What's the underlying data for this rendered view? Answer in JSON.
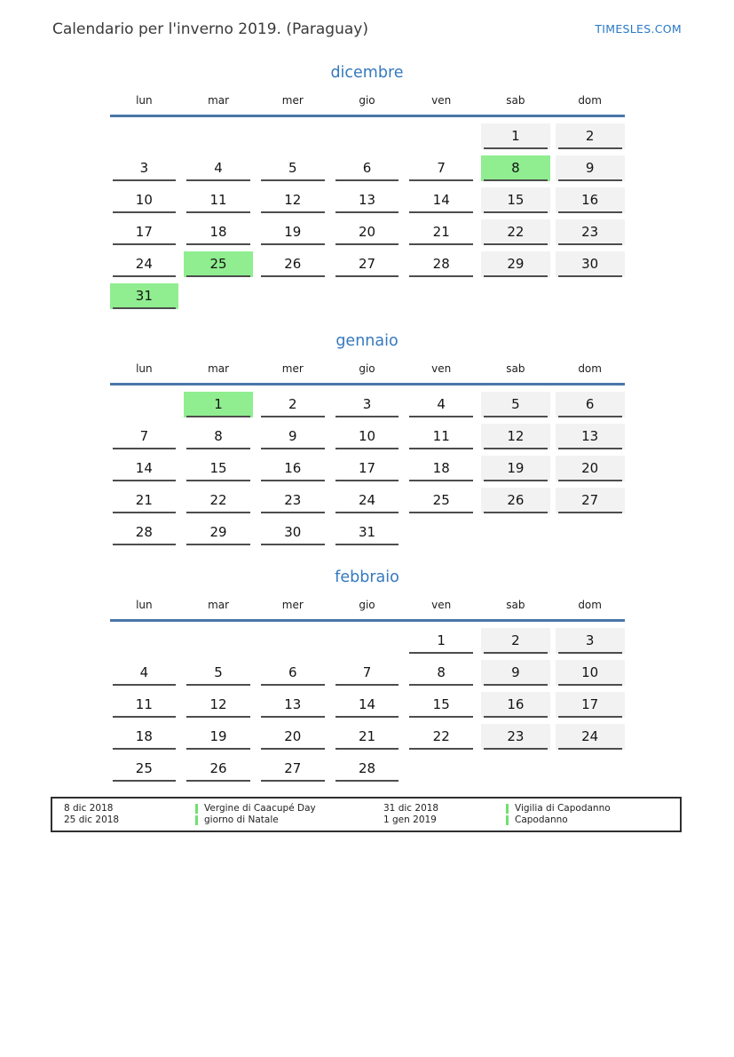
{
  "page": {
    "title": "Calendario per l'inverno 2019. (Paraguay)",
    "site": "TIMESLES.COM"
  },
  "colors": {
    "accent_blue": "#3579be",
    "header_line_blue": "#4a76a8",
    "holiday_green": "#90ee90",
    "weekend_gray": "#f2f2f2",
    "cell_border_gray": "#4d4d4d",
    "legend_marker_green": "#70e070"
  },
  "weekdays": [
    "lun",
    "mar",
    "mer",
    "gio",
    "ven",
    "sab",
    "dom"
  ],
  "months": [
    {
      "name": "dicembre",
      "weeks": [
        [
          {
            "d": ""
          },
          {
            "d": ""
          },
          {
            "d": ""
          },
          {
            "d": ""
          },
          {
            "d": ""
          },
          {
            "d": "1",
            "t": "we"
          },
          {
            "d": "2",
            "t": "we"
          }
        ],
        [
          {
            "d": "3"
          },
          {
            "d": "4"
          },
          {
            "d": "5"
          },
          {
            "d": "6"
          },
          {
            "d": "7"
          },
          {
            "d": "8",
            "t": "hol"
          },
          {
            "d": "9",
            "t": "we"
          }
        ],
        [
          {
            "d": "10"
          },
          {
            "d": "11"
          },
          {
            "d": "12"
          },
          {
            "d": "13"
          },
          {
            "d": "14"
          },
          {
            "d": "15",
            "t": "we"
          },
          {
            "d": "16",
            "t": "we"
          }
        ],
        [
          {
            "d": "17"
          },
          {
            "d": "18"
          },
          {
            "d": "19"
          },
          {
            "d": "20"
          },
          {
            "d": "21"
          },
          {
            "d": "22",
            "t": "we"
          },
          {
            "d": "23",
            "t": "we"
          }
        ],
        [
          {
            "d": "24"
          },
          {
            "d": "25",
            "t": "hol"
          },
          {
            "d": "26"
          },
          {
            "d": "27"
          },
          {
            "d": "28"
          },
          {
            "d": "29",
            "t": "we"
          },
          {
            "d": "30",
            "t": "we"
          }
        ],
        [
          {
            "d": "31",
            "t": "hol"
          },
          {
            "d": ""
          },
          {
            "d": ""
          },
          {
            "d": ""
          },
          {
            "d": ""
          },
          {
            "d": ""
          },
          {
            "d": ""
          }
        ]
      ]
    },
    {
      "name": "gennaio",
      "weeks": [
        [
          {
            "d": ""
          },
          {
            "d": "1",
            "t": "hol"
          },
          {
            "d": "2"
          },
          {
            "d": "3"
          },
          {
            "d": "4"
          },
          {
            "d": "5",
            "t": "we"
          },
          {
            "d": "6",
            "t": "we"
          }
        ],
        [
          {
            "d": "7"
          },
          {
            "d": "8"
          },
          {
            "d": "9"
          },
          {
            "d": "10"
          },
          {
            "d": "11"
          },
          {
            "d": "12",
            "t": "we"
          },
          {
            "d": "13",
            "t": "we"
          }
        ],
        [
          {
            "d": "14"
          },
          {
            "d": "15"
          },
          {
            "d": "16"
          },
          {
            "d": "17"
          },
          {
            "d": "18"
          },
          {
            "d": "19",
            "t": "we"
          },
          {
            "d": "20",
            "t": "we"
          }
        ],
        [
          {
            "d": "21"
          },
          {
            "d": "22"
          },
          {
            "d": "23"
          },
          {
            "d": "24"
          },
          {
            "d": "25"
          },
          {
            "d": "26",
            "t": "we"
          },
          {
            "d": "27",
            "t": "we"
          }
        ],
        [
          {
            "d": "28"
          },
          {
            "d": "29"
          },
          {
            "d": "30"
          },
          {
            "d": "31"
          },
          {
            "d": ""
          },
          {
            "d": ""
          },
          {
            "d": ""
          }
        ]
      ]
    },
    {
      "name": "febbraio",
      "weeks": [
        [
          {
            "d": ""
          },
          {
            "d": ""
          },
          {
            "d": ""
          },
          {
            "d": ""
          },
          {
            "d": "1"
          },
          {
            "d": "2",
            "t": "we"
          },
          {
            "d": "3",
            "t": "we"
          }
        ],
        [
          {
            "d": "4"
          },
          {
            "d": "5"
          },
          {
            "d": "6"
          },
          {
            "d": "7"
          },
          {
            "d": "8"
          },
          {
            "d": "9",
            "t": "we"
          },
          {
            "d": "10",
            "t": "we"
          }
        ],
        [
          {
            "d": "11"
          },
          {
            "d": "12"
          },
          {
            "d": "13"
          },
          {
            "d": "14"
          },
          {
            "d": "15"
          },
          {
            "d": "16",
            "t": "we"
          },
          {
            "d": "17",
            "t": "we"
          }
        ],
        [
          {
            "d": "18"
          },
          {
            "d": "19"
          },
          {
            "d": "20"
          },
          {
            "d": "21"
          },
          {
            "d": "22"
          },
          {
            "d": "23",
            "t": "we"
          },
          {
            "d": "24",
            "t": "we"
          }
        ],
        [
          {
            "d": "25"
          },
          {
            "d": "26"
          },
          {
            "d": "27"
          },
          {
            "d": "28"
          },
          {
            "d": ""
          },
          {
            "d": ""
          },
          {
            "d": ""
          }
        ]
      ]
    }
  ],
  "legend": {
    "groups": [
      {
        "dates": [
          "8 dic 2018",
          "25 dic 2018"
        ],
        "labels": [
          "Vergine di Caacupé Day",
          "giorno di Natale"
        ]
      },
      {
        "dates": [
          "31 dic 2018",
          "1 gen 2019"
        ],
        "labels": [
          "Vigilia di Capodanno",
          "Capodanno"
        ]
      }
    ]
  }
}
